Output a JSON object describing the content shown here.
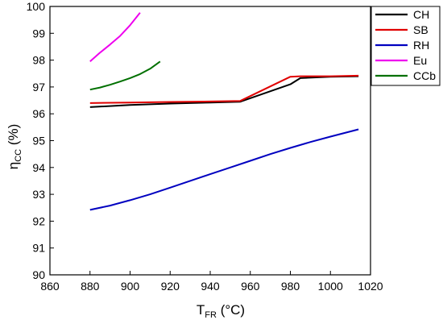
{
  "chart_data": {
    "type": "line",
    "xlabel": {
      "main": "T",
      "sub": "FR",
      "rest": " (°C)"
    },
    "ylabel": {
      "main": "η",
      "sub": "CC",
      "rest": " (%)"
    },
    "xlim": [
      860,
      1020
    ],
    "ylim": [
      90,
      100
    ],
    "xticks": [
      "860",
      "880",
      "900",
      "920",
      "940",
      "960",
      "980",
      "1000",
      "1020"
    ],
    "yticks": [
      "90",
      "91",
      "92",
      "93",
      "94",
      "95",
      "96",
      "97",
      "98",
      "99",
      "100"
    ],
    "grid": false,
    "legend_position": "top-right",
    "series": [
      {
        "name": "CH",
        "color": "#000000",
        "x": [
          880,
          900,
          920,
          940,
          955,
          980,
          985,
          1000,
          1014
        ],
        "y": [
          96.25,
          96.33,
          96.38,
          96.42,
          96.45,
          97.1,
          97.33,
          97.38,
          97.4
        ]
      },
      {
        "name": "SB",
        "color": "#e00000",
        "x": [
          880,
          900,
          920,
          940,
          955,
          980,
          985,
          1000,
          1014
        ],
        "y": [
          96.4,
          96.42,
          96.44,
          96.46,
          96.48,
          97.38,
          97.4,
          97.4,
          97.42
        ]
      },
      {
        "name": "RH",
        "color": "#0000c0",
        "x": [
          880,
          890,
          900,
          910,
          920,
          930,
          940,
          950,
          960,
          970,
          980,
          990,
          1000,
          1014
        ],
        "y": [
          92.42,
          92.58,
          92.78,
          93.0,
          93.25,
          93.5,
          93.75,
          94.0,
          94.25,
          94.5,
          94.73,
          94.95,
          95.15,
          95.42
        ]
      },
      {
        "name": "Eu",
        "color": "#ee00ee",
        "x": [
          880,
          885,
          890,
          895,
          900,
          905
        ],
        "y": [
          97.95,
          98.28,
          98.58,
          98.9,
          99.3,
          99.77
        ]
      },
      {
        "name": "CCb",
        "color": "#007000",
        "x": [
          880,
          885,
          890,
          895,
          900,
          905,
          910,
          915
        ],
        "y": [
          96.9,
          96.98,
          97.08,
          97.2,
          97.33,
          97.48,
          97.68,
          97.95
        ]
      }
    ]
  }
}
